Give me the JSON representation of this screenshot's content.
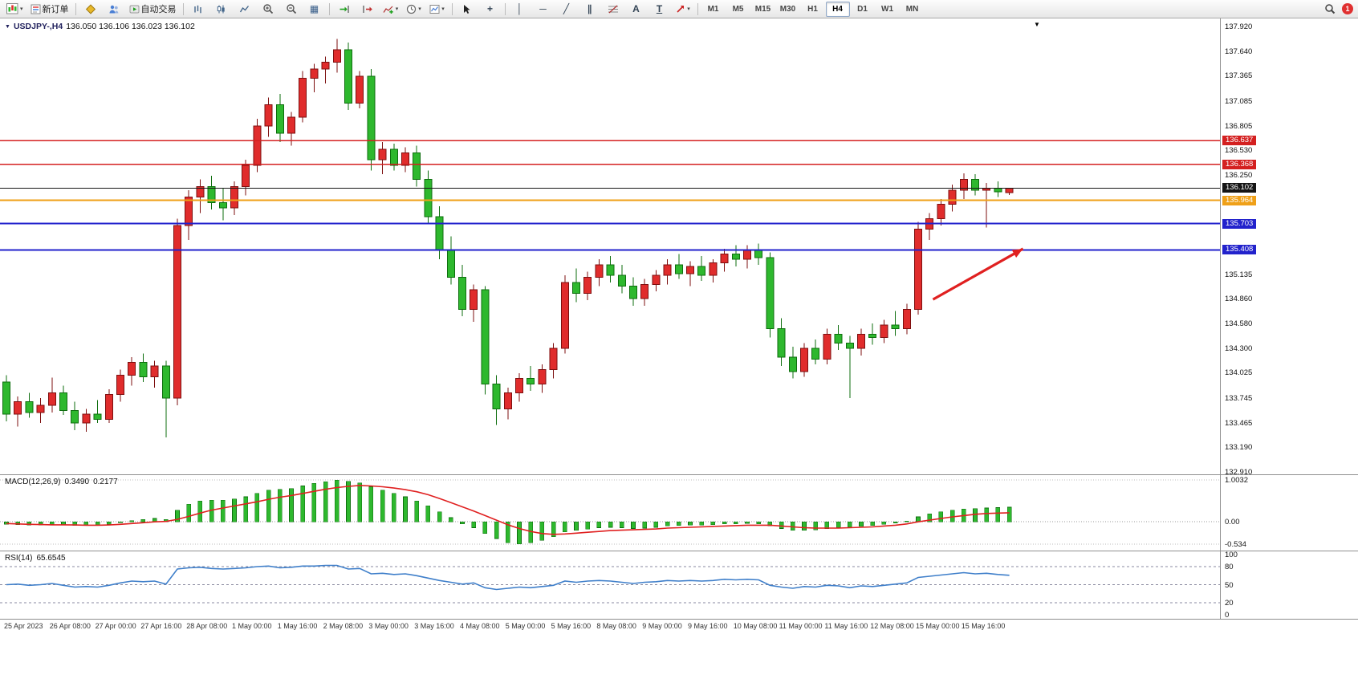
{
  "toolbar": {
    "new_order_label": "新订单",
    "auto_trading_label": "自动交易",
    "timeframes": [
      "M1",
      "M5",
      "M15",
      "M30",
      "H1",
      "H4",
      "D1",
      "W1",
      "MN"
    ],
    "active_timeframe": "H4",
    "notification_count": "1"
  },
  "icons": {
    "caret": "▾",
    "dropdown_triangle": "▼",
    "shift_marker": "▼",
    "crosshair": "+",
    "vline": "│",
    "hline": "─",
    "trendline": "╱",
    "channel": "∥",
    "text_tool": "A",
    "label_tool": "T",
    "tile": "▦"
  },
  "chart_title": {
    "symbol": "USDJPY-,H4",
    "ohlc": "136.050 136.106 136.023 136.102"
  },
  "indicators": {
    "macd": {
      "name": "MACD(12,26,9)",
      "value_main": "0.3490",
      "value_signal": "0.2177"
    },
    "rsi": {
      "name": "RSI(14)",
      "value": "65.6545"
    }
  },
  "price_axis": {
    "labels": [
      "137.920",
      "137.640",
      "137.365",
      "137.085",
      "136.805",
      "136.530",
      "136.250",
      "135.135",
      "134.860",
      "134.580",
      "134.300",
      "134.025",
      "133.745",
      "133.465",
      "133.190",
      "132.910"
    ],
    "badges": [
      {
        "value": "136.637",
        "color": "#d42020"
      },
      {
        "value": "136.368",
        "color": "#d42020"
      },
      {
        "value": "136.102",
        "color": "#151515"
      },
      {
        "value": "135.964",
        "color": "#efa018"
      },
      {
        "value": "135.703",
        "color": "#2222cc"
      },
      {
        "value": "135.408",
        "color": "#2222cc"
      }
    ]
  },
  "chart_data": [
    {
      "type": "candlestick",
      "symbol": "USDJPY-",
      "timeframe": "H4",
      "ylim": [
        132.91,
        137.92
      ],
      "up_color": "#e02c2c",
      "up_border": "#7d0f0f",
      "down_color": "#2eb82e",
      "down_border": "#0e6e0e",
      "current_price": 136.102,
      "hlines": [
        {
          "price": 136.637,
          "color": "#d42020",
          "width": 1.4
        },
        {
          "price": 136.368,
          "color": "#d42020",
          "width": 1.4
        },
        {
          "price": 135.964,
          "color": "#efa018",
          "width": 2
        },
        {
          "price": 135.703,
          "color": "#2222cc",
          "width": 2
        },
        {
          "price": 135.408,
          "color": "#2222cc",
          "width": 2
        }
      ],
      "arrow": {
        "from_index": 81.3,
        "from_price": 134.85,
        "to_index": 89.2,
        "to_price": 135.42,
        "color": "#e02020"
      },
      "x_labels": [
        "25 Apr 2023",
        "26 Apr 08:00",
        "27 Apr 00:00",
        "27 Apr 16:00",
        "28 Apr 08:00",
        "1 May 00:00",
        "1 May 16:00",
        "2 May 08:00",
        "3 May 00:00",
        "3 May 16:00",
        "4 May 08:00",
        "5 May 00:00",
        "5 May 16:00",
        "8 May 08:00",
        "9 May 00:00",
        "9 May 16:00",
        "10 May 08:00",
        "11 May 00:00",
        "11 May 16:00",
        "12 May 08:00",
        "15 May 00:00",
        "15 May 16:00"
      ],
      "candles_ohlc": [
        [
          133.92,
          134.0,
          133.48,
          133.56
        ],
        [
          133.56,
          133.76,
          133.42,
          133.7
        ],
        [
          133.7,
          133.8,
          133.52,
          133.58
        ],
        [
          133.58,
          133.74,
          133.46,
          133.66
        ],
        [
          133.66,
          133.97,
          133.58,
          133.8
        ],
        [
          133.8,
          133.88,
          133.55,
          133.6
        ],
        [
          133.6,
          133.7,
          133.38,
          133.46
        ],
        [
          133.46,
          133.62,
          133.36,
          133.56
        ],
        [
          133.56,
          133.72,
          133.46,
          133.5
        ],
        [
          133.5,
          133.84,
          133.46,
          133.78
        ],
        [
          133.78,
          134.06,
          133.7,
          134.0
        ],
        [
          134.0,
          134.2,
          133.88,
          134.14
        ],
        [
          134.14,
          134.24,
          133.92,
          133.98
        ],
        [
          133.98,
          134.16,
          133.86,
          134.1
        ],
        [
          134.1,
          134.16,
          133.3,
          133.74
        ],
        [
          133.74,
          135.76,
          133.66,
          135.68
        ],
        [
          135.68,
          136.08,
          135.52,
          136.0
        ],
        [
          136.0,
          136.2,
          135.82,
          136.12
        ],
        [
          136.12,
          136.24,
          135.86,
          135.94
        ],
        [
          135.94,
          136.1,
          135.74,
          135.88
        ],
        [
          135.88,
          136.18,
          135.8,
          136.12
        ],
        [
          136.12,
          136.42,
          136.02,
          136.36
        ],
        [
          136.36,
          136.88,
          136.28,
          136.8
        ],
        [
          136.8,
          137.12,
          136.68,
          137.04
        ],
        [
          137.04,
          137.16,
          136.62,
          136.72
        ],
        [
          136.72,
          136.96,
          136.58,
          136.9
        ],
        [
          136.9,
          137.42,
          136.84,
          137.34
        ],
        [
          137.34,
          137.5,
          137.18,
          137.44
        ],
        [
          137.44,
          137.58,
          137.28,
          137.52
        ],
        [
          137.52,
          137.78,
          137.4,
          137.66
        ],
        [
          137.66,
          137.74,
          136.98,
          137.06
        ],
        [
          137.06,
          137.42,
          137.0,
          137.36
        ],
        [
          137.36,
          137.44,
          136.3,
          136.42
        ],
        [
          136.42,
          136.62,
          136.26,
          136.54
        ],
        [
          136.54,
          136.6,
          136.3,
          136.36
        ],
        [
          136.36,
          136.56,
          136.28,
          136.5
        ],
        [
          136.5,
          136.58,
          136.12,
          136.2
        ],
        [
          136.2,
          136.3,
          135.7,
          135.78
        ],
        [
          135.78,
          135.9,
          135.3,
          135.4
        ],
        [
          135.4,
          135.56,
          135.02,
          135.1
        ],
        [
          135.1,
          135.24,
          134.66,
          134.74
        ],
        [
          134.74,
          135.02,
          134.6,
          134.96
        ],
        [
          134.96,
          135.0,
          133.78,
          133.9
        ],
        [
          133.9,
          134.0,
          133.44,
          133.62
        ],
        [
          133.62,
          133.86,
          133.5,
          133.8
        ],
        [
          133.8,
          134.02,
          133.7,
          133.96
        ],
        [
          133.96,
          134.1,
          133.82,
          133.9
        ],
        [
          133.9,
          134.12,
          133.8,
          134.06
        ],
        [
          134.06,
          134.36,
          133.96,
          134.3
        ],
        [
          134.3,
          135.12,
          134.24,
          135.04
        ],
        [
          135.04,
          135.2,
          134.82,
          134.92
        ],
        [
          134.92,
          135.16,
          134.84,
          135.1
        ],
        [
          135.1,
          135.3,
          135.0,
          135.24
        ],
        [
          135.24,
          135.34,
          135.04,
          135.12
        ],
        [
          135.12,
          135.24,
          134.92,
          135.0
        ],
        [
          135.0,
          135.1,
          134.78,
          134.86
        ],
        [
          134.86,
          135.08,
          134.78,
          135.02
        ],
        [
          135.02,
          135.18,
          134.94,
          135.12
        ],
        [
          135.12,
          135.3,
          135.02,
          135.24
        ],
        [
          135.24,
          135.36,
          135.08,
          135.14
        ],
        [
          135.14,
          135.28,
          135.0,
          135.22
        ],
        [
          135.22,
          135.34,
          135.06,
          135.12
        ],
        [
          135.12,
          135.3,
          135.04,
          135.26
        ],
        [
          135.26,
          135.42,
          135.16,
          135.36
        ],
        [
          135.36,
          135.46,
          135.22,
          135.3
        ],
        [
          135.3,
          135.46,
          135.2,
          135.4
        ],
        [
          135.4,
          135.48,
          135.24,
          135.32
        ],
        [
          135.32,
          135.38,
          134.42,
          134.52
        ],
        [
          134.52,
          134.64,
          134.1,
          134.2
        ],
        [
          134.2,
          134.32,
          133.96,
          134.04
        ],
        [
          134.04,
          134.36,
          133.98,
          134.3
        ],
        [
          134.3,
          134.4,
          134.12,
          134.18
        ],
        [
          134.18,
          134.52,
          134.12,
          134.46
        ],
        [
          134.46,
          134.56,
          134.28,
          134.36
        ],
        [
          134.36,
          134.44,
          133.74,
          134.3
        ],
        [
          134.3,
          134.52,
          134.22,
          134.46
        ],
        [
          134.46,
          134.58,
          134.34,
          134.42
        ],
        [
          134.42,
          134.62,
          134.36,
          134.56
        ],
        [
          134.56,
          134.72,
          134.44,
          134.52
        ],
        [
          134.52,
          134.8,
          134.46,
          134.74
        ],
        [
          134.74,
          135.72,
          134.68,
          135.64
        ],
        [
          135.64,
          135.82,
          135.52,
          135.76
        ],
        [
          135.76,
          135.98,
          135.68,
          135.92
        ],
        [
          135.92,
          136.14,
          135.84,
          136.08
        ],
        [
          136.08,
          136.27,
          135.98,
          136.2
        ],
        [
          136.2,
          136.26,
          136.02,
          136.08
        ],
        [
          136.08,
          136.16,
          135.66,
          136.1
        ],
        [
          136.1,
          136.18,
          136.0,
          136.06
        ],
        [
          136.05,
          136.106,
          136.023,
          136.102
        ]
      ]
    },
    {
      "type": "bar",
      "name": "MACD(12,26,9)",
      "ylim": [
        -0.534,
        1.0032
      ],
      "axis_labels": [
        "1.0032",
        "0.00",
        "-0.534"
      ],
      "histogram_color": "#2eb82e",
      "histogram_border": "#0e6e0e",
      "signal_color": "#e02020",
      "histogram": [
        -0.06,
        -0.07,
        -0.08,
        -0.08,
        -0.06,
        -0.07,
        -0.09,
        -0.09,
        -0.08,
        -0.06,
        -0.02,
        0.03,
        0.06,
        0.08,
        0.06,
        0.28,
        0.42,
        0.5,
        0.52,
        0.52,
        0.55,
        0.6,
        0.68,
        0.76,
        0.78,
        0.8,
        0.86,
        0.92,
        0.96,
        1.0,
        0.97,
        0.93,
        0.84,
        0.76,
        0.68,
        0.6,
        0.5,
        0.38,
        0.24,
        0.1,
        -0.05,
        -0.14,
        -0.28,
        -0.4,
        -0.5,
        -0.53,
        -0.5,
        -0.44,
        -0.36,
        -0.24,
        -0.2,
        -0.17,
        -0.14,
        -0.13,
        -0.14,
        -0.16,
        -0.15,
        -0.13,
        -0.1,
        -0.09,
        -0.08,
        -0.08,
        -0.07,
        -0.05,
        -0.05,
        -0.04,
        -0.05,
        -0.1,
        -0.16,
        -0.2,
        -0.2,
        -0.19,
        -0.16,
        -0.14,
        -0.13,
        -0.11,
        -0.09,
        -0.06,
        -0.03,
        0.02,
        0.12,
        0.19,
        0.24,
        0.28,
        0.31,
        0.32,
        0.33,
        0.34,
        0.349
      ],
      "signal": [
        -0.04,
        -0.05,
        -0.06,
        -0.065,
        -0.07,
        -0.07,
        -0.075,
        -0.08,
        -0.08,
        -0.075,
        -0.06,
        -0.04,
        -0.02,
        0.0,
        0.01,
        0.06,
        0.13,
        0.21,
        0.28,
        0.33,
        0.38,
        0.43,
        0.48,
        0.54,
        0.59,
        0.63,
        0.68,
        0.73,
        0.78,
        0.82,
        0.85,
        0.87,
        0.86,
        0.84,
        0.81,
        0.77,
        0.72,
        0.65,
        0.56,
        0.46,
        0.36,
        0.26,
        0.15,
        0.04,
        -0.07,
        -0.16,
        -0.23,
        -0.28,
        -0.3,
        -0.29,
        -0.27,
        -0.25,
        -0.23,
        -0.21,
        -0.2,
        -0.19,
        -0.18,
        -0.17,
        -0.15,
        -0.14,
        -0.13,
        -0.12,
        -0.11,
        -0.1,
        -0.09,
        -0.08,
        -0.08,
        -0.08,
        -0.1,
        -0.12,
        -0.14,
        -0.15,
        -0.15,
        -0.15,
        -0.14,
        -0.13,
        -0.12,
        -0.1,
        -0.08,
        -0.05,
        0.0,
        0.04,
        0.08,
        0.12,
        0.15,
        0.18,
        0.2,
        0.21,
        0.2177
      ]
    },
    {
      "type": "line",
      "name": "RSI(14)",
      "ylim": [
        0,
        100
      ],
      "levels": [
        80,
        50,
        20
      ],
      "axis_labels": [
        "100",
        "80",
        "50",
        "20",
        "0"
      ],
      "line_color": "#3f7fca",
      "values": [
        50,
        51,
        49,
        50,
        52,
        49,
        46,
        47,
        46,
        49,
        53,
        56,
        55,
        56,
        51,
        76,
        78,
        79,
        77,
        76,
        77,
        78,
        80,
        81,
        78,
        79,
        81,
        81,
        82,
        82,
        76,
        77,
        68,
        69,
        67,
        68,
        65,
        61,
        57,
        54,
        51,
        53,
        45,
        42,
        44,
        46,
        45,
        47,
        49,
        56,
        54,
        56,
        57,
        56,
        54,
        52,
        54,
        55,
        57,
        56,
        57,
        56,
        57,
        59,
        58,
        59,
        58,
        49,
        46,
        44,
        47,
        46,
        49,
        48,
        45,
        48,
        47,
        49,
        51,
        53,
        62,
        64,
        66,
        68,
        70,
        68,
        69,
        67,
        65.65
      ]
    }
  ]
}
